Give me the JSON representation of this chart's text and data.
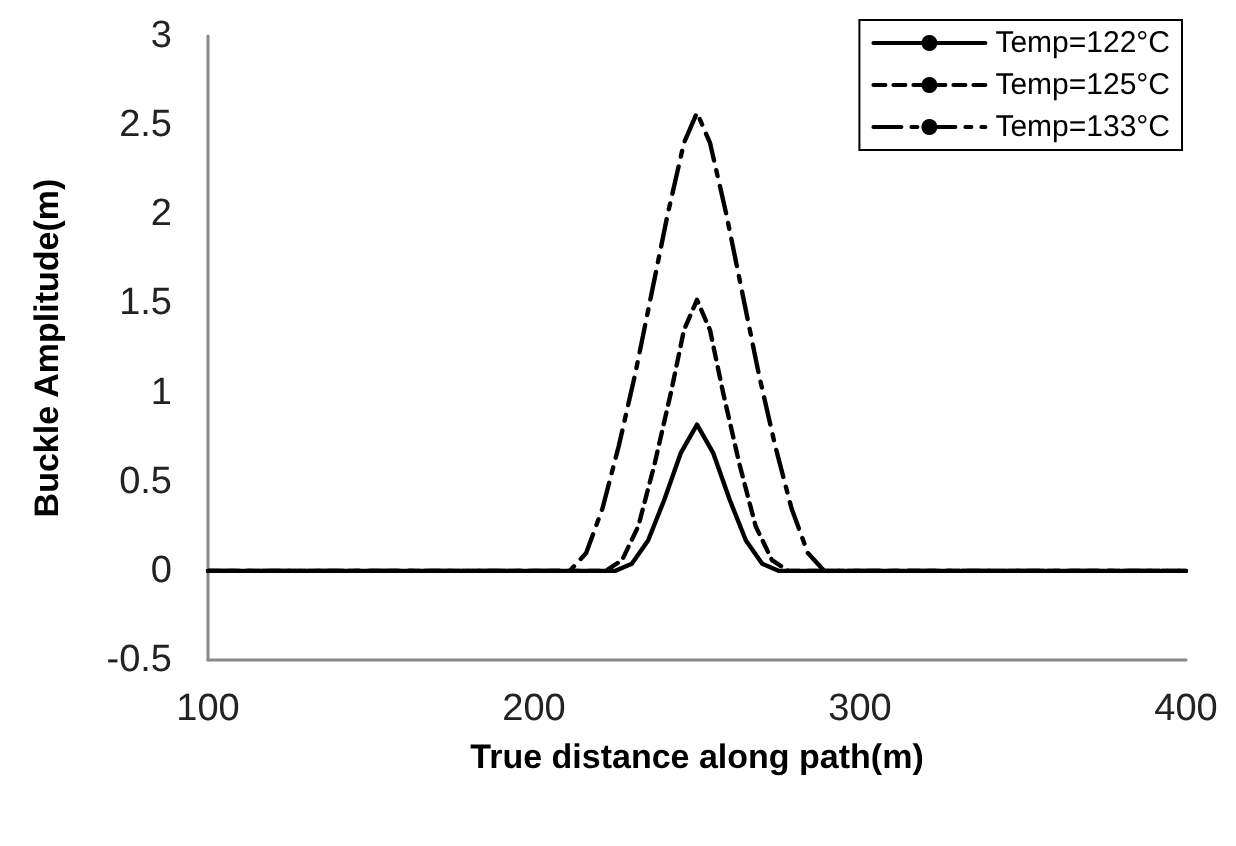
{
  "chart_data": {
    "type": "line",
    "xlabel": "True distance along path(m)",
    "ylabel": "Buckle Amplitude(m)",
    "xlim": [
      100,
      400
    ],
    "xticks": [
      100,
      200,
      300,
      400
    ],
    "ylim": [
      -0.5,
      3
    ],
    "yticks": [
      -0.5,
      0,
      0.5,
      1,
      1.5,
      2,
      2.5,
      3
    ],
    "grid": false,
    "legend": "top right",
    "marker": "none",
    "series": [
      {
        "name": "Temp=122°C",
        "color": "#000000",
        "line_style": "solid",
        "x": [
          100,
          200,
          225,
          230,
          235,
          240,
          245,
          250,
          255,
          260,
          265,
          270,
          275,
          300,
          400
        ],
        "values": [
          0,
          0,
          0,
          0.04,
          0.17,
          0.4,
          0.66,
          0.82,
          0.66,
          0.4,
          0.17,
          0.04,
          0,
          0,
          0
        ]
      },
      {
        "name": "Temp=125°C",
        "color": "#000000",
        "line_style": "dashed",
        "x": [
          100,
          200,
          222,
          227,
          232,
          237,
          242,
          246,
          250,
          254,
          258,
          263,
          268,
          273,
          278,
          300,
          400
        ],
        "values": [
          0,
          0,
          0,
          0.06,
          0.25,
          0.6,
          1.0,
          1.35,
          1.52,
          1.35,
          1.0,
          0.6,
          0.25,
          0.06,
          0,
          0,
          0
        ]
      },
      {
        "name": "Temp=133°C",
        "color": "#000000",
        "line_style": "dashdot",
        "x": [
          100,
          200,
          211,
          216,
          221,
          226,
          231,
          236,
          241,
          246,
          250,
          254,
          259,
          264,
          269,
          274,
          279,
          284,
          289,
          300,
          400
        ],
        "values": [
          0,
          0,
          0,
          0.1,
          0.35,
          0.7,
          1.1,
          1.55,
          2.0,
          2.4,
          2.57,
          2.4,
          2.0,
          1.55,
          1.1,
          0.7,
          0.35,
          0.1,
          0,
          0,
          0
        ]
      }
    ]
  }
}
